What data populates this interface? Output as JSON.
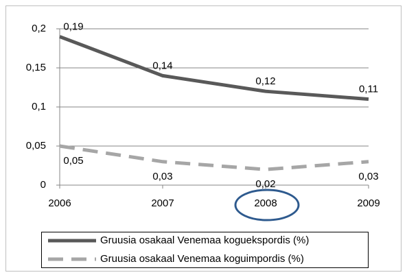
{
  "chart_data": {
    "type": "line",
    "categories": [
      "2006",
      "2007",
      "2008",
      "2009"
    ],
    "series": [
      {
        "name": "Gruusia osakaal Venemaa koguekspordis (%)",
        "color": "#595959",
        "dash": false,
        "values": [
          0.19,
          0.14,
          0.12,
          0.11
        ],
        "value_labels": [
          "0,19",
          "0,14",
          "0,12",
          "0,11"
        ]
      },
      {
        "name": "Gruusia osakaal Venemaa koguimpordis (%)",
        "color": "#a6a6a6",
        "dash": true,
        "values": [
          0.05,
          0.03,
          0.02,
          0.03
        ],
        "value_labels": [
          "0,05",
          "0,03",
          "0,02",
          "0,03"
        ]
      }
    ],
    "ylim": [
      0,
      0.2
    ],
    "yticks": [
      0,
      {
        "value": 0.05,
        "label": "0,05"
      },
      {
        "value": 0.1,
        "label": "0,1"
      },
      {
        "value": 0.15,
        "label": "0,15"
      },
      {
        "value": 0.2,
        "label": "0,2"
      }
    ],
    "grid": true,
    "legend": "bottom"
  }
}
